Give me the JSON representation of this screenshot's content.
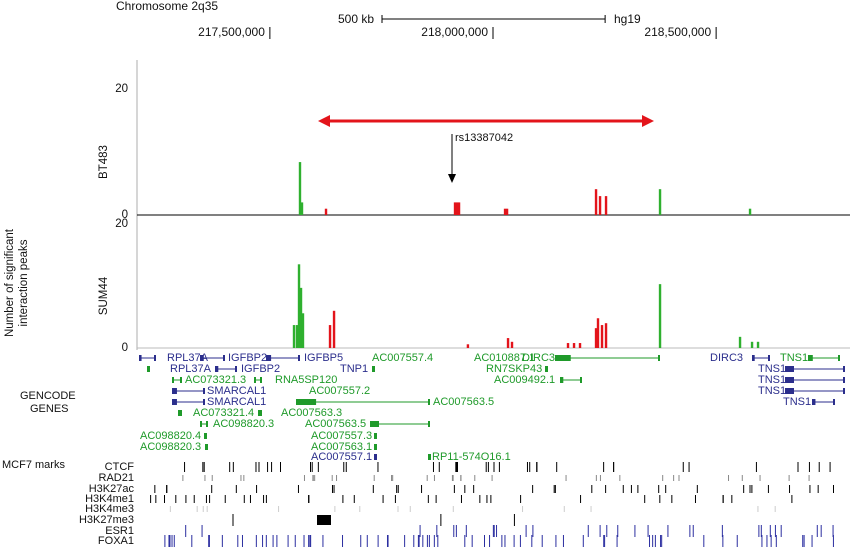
{
  "header": {
    "chromosome": "Chromosome 2q35",
    "scale_bar": {
      "value": 500000,
      "label": "500 kb"
    },
    "assembly": "hg19",
    "xlim": [
      217200000,
      218800000
    ],
    "xticks": [
      {
        "value": 217500000,
        "label": "217,500,000"
      },
      {
        "value": 218000000,
        "label": "218,000,000"
      },
      {
        "value": 218500000,
        "label": "218,500,000"
      }
    ]
  },
  "ylabel": [
    "Number of significant",
    "interaction peaks"
  ],
  "annotation": "rs13387042",
  "chart_data": [
    {
      "type": "bar",
      "title": "BT483",
      "ylim": [
        0,
        20
      ],
      "yticks": [
        0,
        20
      ],
      "x": [
        217567500,
        217572000,
        217625800,
        217914900,
        217919400,
        217923900,
        218027000,
        218031500,
        218230900,
        218239900,
        218253300,
        218374300,
        218576000
      ],
      "values": [
        8.4,
        2,
        1,
        2,
        2,
        2,
        1,
        1,
        4.1,
        3,
        3,
        4.1,
        1
      ],
      "colors": [
        "#2fb02f",
        "#2fb02f",
        "#e3141b",
        "#e3141b",
        "#e3141b",
        "#e3141b",
        "#e3141b",
        "#e3141b",
        "#e3141b",
        "#e3141b",
        "#e3141b",
        "#2fb02f",
        "#2fb02f"
      ]
    },
    {
      "type": "bar",
      "title": "SUM44",
      "ylim": [
        0,
        20
      ],
      "yticks": [
        0,
        20
      ],
      "x": [
        217554100,
        217560800,
        217565300,
        217569800,
        217574200,
        217634800,
        217643800,
        217943800,
        218033700,
        218042600,
        218168100,
        218181600,
        218195000,
        218230900,
        218235300,
        218244300,
        218253300,
        218374300,
        218553600,
        218580500,
        218593900
      ],
      "values": [
        3.7,
        3.7,
        13.5,
        9.7,
        5.6,
        3.7,
        6,
        0.6,
        1.6,
        1,
        0.8,
        0.8,
        0.8,
        3.2,
        4.8,
        3.7,
        4,
        10.3,
        1.8,
        1,
        1
      ],
      "colors": [
        "#2fb02f",
        "#2fb02f",
        "#2fb02f",
        "#2fb02f",
        "#2fb02f",
        "#e3141b",
        "#e3141b",
        "#e3141b",
        "#e3141b",
        "#e3141b",
        "#e3141b",
        "#e3141b",
        "#e3141b",
        "#e3141b",
        "#e3141b",
        "#e3141b",
        "#e3141b",
        "#2fb02f",
        "#2fb02f",
        "#2fb02f",
        "#2fb02f"
      ]
    }
  ],
  "genes": {
    "title": [
      "GENCODE",
      "GENES"
    ],
    "labels": [
      "RPL37A",
      "IGFBP2",
      "IGFBP5",
      "AC007557.4",
      "AC010887.1",
      "DIRC3",
      "DIRC3",
      "TNS1",
      "RPL37A",
      "IGFBP2",
      "TNP1",
      "RN7SKP43",
      "TNS1",
      "AC073321.3",
      "RNA5SP120",
      "AC009492.1",
      "TNS1",
      "SMARCAL1",
      "AC007557.2",
      "TNS1",
      "SMARCAL1",
      "AC007563.5",
      "TNS1",
      "AC073321.4",
      "AC007563.3",
      "AC098820.3",
      "AC007563.5",
      "AC098820.4",
      "AC007557.3",
      "AC098820.3",
      "AC007563.1",
      "AC007557.1",
      "RP11-574O16.1"
    ]
  },
  "marks": {
    "title": "MCF7 marks",
    "tracks": [
      "CTCF",
      "RAD21",
      "H3K27ac",
      "H3K4me1",
      "H3K4me3",
      "H3K27me3",
      "ESR1",
      "FOXA1"
    ]
  }
}
